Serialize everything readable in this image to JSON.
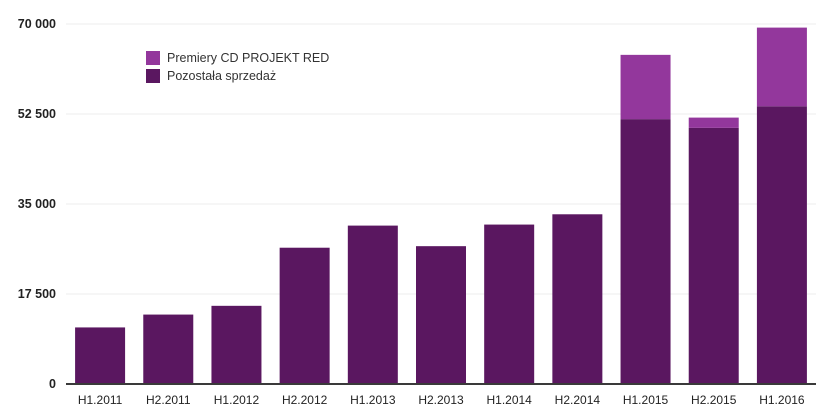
{
  "chart_data": {
    "type": "bar",
    "stacked": true,
    "categories": [
      "H1.2011",
      "H2.2011",
      "H1.2012",
      "H2.2012",
      "H1.2013",
      "H2.2013",
      "H1.2014",
      "H2.2014",
      "H1.2015",
      "H2.2015",
      "H1.2016"
    ],
    "series": [
      {
        "name": "Pozostała sprzedaż",
        "color": "#5a1760",
        "values": [
          11000,
          13500,
          15200,
          26500,
          30800,
          26800,
          31000,
          33000,
          51500,
          49800,
          54000
        ]
      },
      {
        "name": "Premiery CD PROJEKT RED",
        "color": "#93379c",
        "values": [
          0,
          0,
          0,
          0,
          0,
          0,
          0,
          0,
          12500,
          2000,
          15300
        ]
      }
    ],
    "yticks": [
      {
        "value": 0,
        "label": "0"
      },
      {
        "value": 17500,
        "label": "17 500"
      },
      {
        "value": 35000,
        "label": "35 000"
      },
      {
        "value": 52500,
        "label": "52 500"
      },
      {
        "value": 70000,
        "label": "70 000"
      }
    ],
    "ylim": [
      0,
      70000
    ],
    "grid": true,
    "legend_position": "top-left",
    "legend": [
      {
        "label": "Premiery CD PROJEKT RED",
        "color": "#93379c"
      },
      {
        "label": "Pozostała sprzedaż",
        "color": "#5a1760"
      }
    ]
  }
}
